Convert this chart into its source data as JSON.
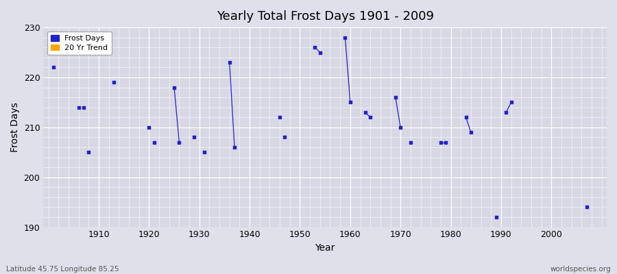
{
  "title": "Yearly Total Frost Days 1901 - 2009",
  "xlabel": "Year",
  "ylabel": "Frost Days",
  "xlim": [
    1899,
    2011
  ],
  "ylim": [
    190,
    230
  ],
  "yticks": [
    190,
    200,
    210,
    220,
    230
  ],
  "xticks": [
    1910,
    1920,
    1930,
    1940,
    1950,
    1960,
    1970,
    1980,
    1990,
    2000
  ],
  "bg_color": "#e0e0ea",
  "plot_bg_color": "#d8d8e4",
  "grid_color": "#ffffff",
  "marker_color": "#2222cc",
  "trend_color": "#ffa500",
  "footnote_left": "Latitude 45.75 Longitude 85.25",
  "footnote_right": "worldspecies.org",
  "legend_labels": [
    "Frost Days",
    "20 Yr Trend"
  ],
  "data_points": [
    [
      1901,
      222
    ],
    [
      1906,
      214
    ],
    [
      1907,
      214
    ],
    [
      1908,
      205
    ],
    [
      1913,
      219
    ],
    [
      1920,
      210
    ],
    [
      1921,
      207
    ],
    [
      1925,
      218
    ],
    [
      1926,
      207
    ],
    [
      1929,
      208
    ],
    [
      1931,
      205
    ],
    [
      1936,
      223
    ],
    [
      1937,
      206
    ],
    [
      1946,
      212
    ],
    [
      1947,
      208
    ],
    [
      1953,
      226
    ],
    [
      1954,
      225
    ],
    [
      1959,
      228
    ],
    [
      1960,
      215
    ],
    [
      1963,
      213
    ],
    [
      1964,
      212
    ],
    [
      1969,
      216
    ],
    [
      1970,
      210
    ],
    [
      1972,
      207
    ],
    [
      1978,
      207
    ],
    [
      1979,
      207
    ],
    [
      1983,
      212
    ],
    [
      1984,
      209
    ],
    [
      1989,
      192
    ],
    [
      1991,
      213
    ],
    [
      1992,
      215
    ],
    [
      2007,
      194
    ]
  ],
  "line_segments": [
    [
      [
        1925,
        218
      ],
      [
        1926,
        207
      ]
    ],
    [
      [
        1936,
        223
      ],
      [
        1937,
        206
      ]
    ],
    [
      [
        1953,
        226
      ],
      [
        1954,
        225
      ]
    ],
    [
      [
        1959,
        228
      ],
      [
        1960,
        215
      ]
    ],
    [
      [
        1963,
        213
      ],
      [
        1964,
        212
      ]
    ],
    [
      [
        1969,
        216
      ],
      [
        1970,
        210
      ]
    ],
    [
      [
        1978,
        207
      ],
      [
        1979,
        207
      ]
    ],
    [
      [
        1983,
        212
      ],
      [
        1984,
        209
      ]
    ],
    [
      [
        1991,
        213
      ],
      [
        1992,
        215
      ]
    ]
  ]
}
